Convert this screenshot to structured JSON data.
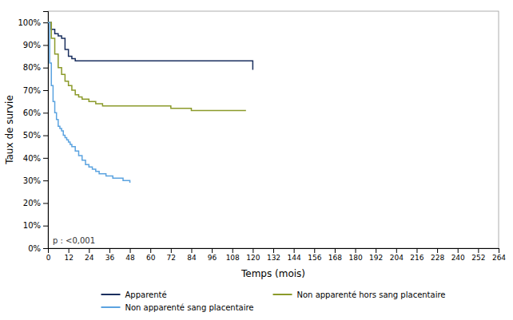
{
  "chart_data": {
    "type": "step",
    "xlabel": "Temps (mois)",
    "ylabel": "Taux de survie",
    "annotation": "p : <0,001",
    "xlim": [
      0,
      264
    ],
    "ylim": [
      0,
      1.05
    ],
    "xticks": [
      0,
      12,
      24,
      36,
      48,
      60,
      72,
      84,
      96,
      108,
      120,
      132,
      144,
      156,
      168,
      180,
      192,
      204,
      216,
      228,
      240,
      252,
      264
    ],
    "yticks": [
      {
        "value": 0.0,
        "label": "0%"
      },
      {
        "value": 0.1,
        "label": "10%"
      },
      {
        "value": 0.2,
        "label": "20%"
      },
      {
        "value": 0.3,
        "label": "30%"
      },
      {
        "value": 0.4,
        "label": "40%"
      },
      {
        "value": 0.5,
        "label": "50%"
      },
      {
        "value": 0.6,
        "label": "60%"
      },
      {
        "value": 0.7,
        "label": "70%"
      },
      {
        "value": 0.8,
        "label": "80%"
      },
      {
        "value": 0.9,
        "label": "90%"
      },
      {
        "value": 1.0,
        "label": "100%"
      }
    ],
    "grid": false,
    "legend": "bottom",
    "series": [
      {
        "name": "Apparenté",
        "color": "#1a2f5e",
        "x": [
          0,
          2,
          4,
          6,
          8,
          10,
          12,
          14,
          16,
          18,
          116,
          120
        ],
        "values": [
          1.0,
          0.97,
          0.95,
          0.94,
          0.93,
          0.88,
          0.85,
          0.84,
          0.83,
          0.83,
          0.83,
          0.79
        ]
      },
      {
        "name": "Non apparenté hors sang placentaire",
        "color": "#8b9a2a",
        "x": [
          0,
          2,
          4,
          6,
          8,
          10,
          12,
          14,
          16,
          18,
          20,
          24,
          28,
          32,
          36,
          48,
          60,
          66,
          72,
          84,
          116
        ],
        "values": [
          1.0,
          0.93,
          0.86,
          0.8,
          0.77,
          0.74,
          0.72,
          0.7,
          0.68,
          0.67,
          0.66,
          0.65,
          0.64,
          0.63,
          0.63,
          0.63,
          0.63,
          0.63,
          0.62,
          0.61,
          0.61
        ]
      },
      {
        "name": "Non apparenté sang placentaire",
        "color": "#5ba3e0",
        "x": [
          0,
          1,
          2,
          3,
          4,
          5,
          6,
          7,
          8,
          9,
          10,
          11,
          12,
          13,
          14,
          16,
          18,
          20,
          22,
          24,
          26,
          28,
          30,
          32,
          34,
          36,
          38,
          40,
          44,
          48
        ],
        "values": [
          1.0,
          0.82,
          0.72,
          0.65,
          0.6,
          0.57,
          0.54,
          0.53,
          0.52,
          0.5,
          0.49,
          0.48,
          0.47,
          0.46,
          0.45,
          0.43,
          0.41,
          0.39,
          0.37,
          0.36,
          0.35,
          0.34,
          0.33,
          0.33,
          0.32,
          0.32,
          0.31,
          0.31,
          0.3,
          0.29
        ]
      }
    ]
  }
}
